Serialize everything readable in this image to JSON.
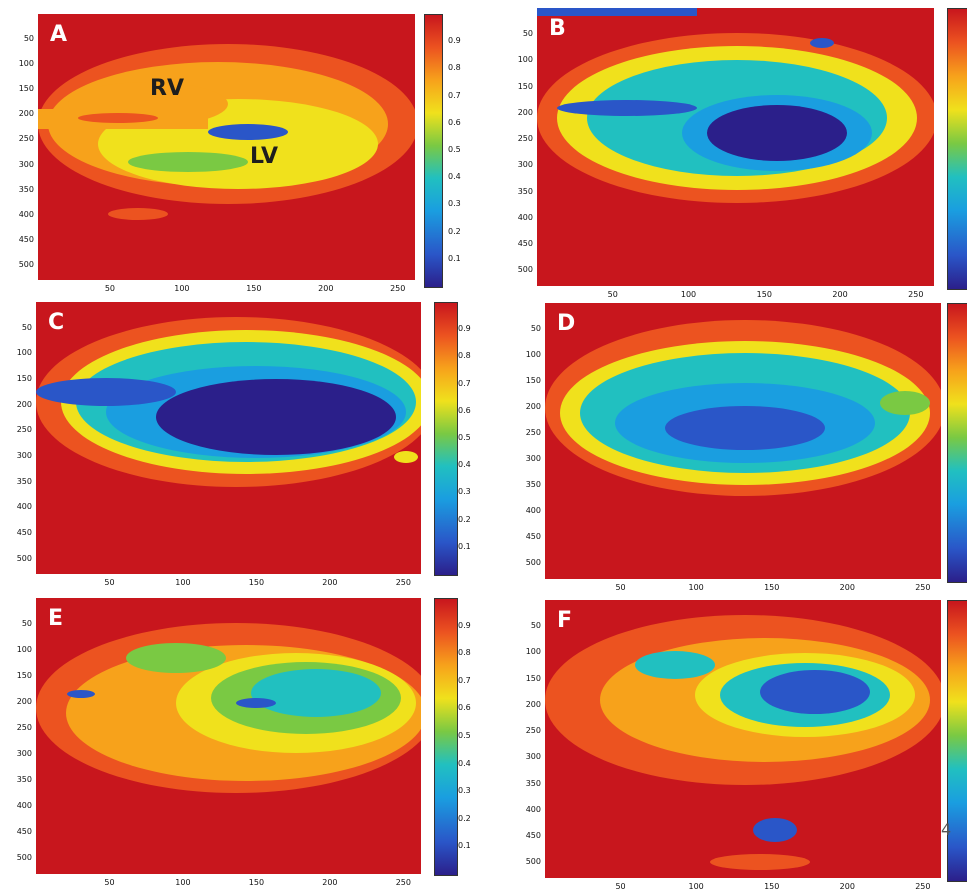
{
  "chart_data": [
    {
      "type": "heatmap",
      "panel": "A",
      "annotations": [
        "RV",
        "LV"
      ],
      "xticks": [
        "50",
        "100",
        "150",
        "200",
        "250"
      ],
      "yticks": [
        "50",
        "100",
        "150",
        "200",
        "250",
        "300",
        "350",
        "400",
        "450",
        "500"
      ],
      "colorbar_ticks": [
        "0.9",
        "0.8",
        "0.7",
        "0.6",
        "0.5",
        "0.4",
        "0.3",
        "0.2",
        "0.1"
      ],
      "colorscale": [
        "#2b1f8a",
        "#2a56c8",
        "#1a9ee0",
        "#21c0c0",
        "#7ac943",
        "#f0e11c",
        "#f7a21b",
        "#ec5320",
        "#c8161d"
      ]
    },
    {
      "type": "heatmap",
      "panel": "B",
      "annotations": [],
      "xticks": [
        "50",
        "100",
        "150",
        "200",
        "250"
      ],
      "yticks": [
        "50",
        "100",
        "150",
        "200",
        "250",
        "300",
        "350",
        "400",
        "450",
        "500"
      ],
      "colorbar_ticks": []
    },
    {
      "type": "heatmap",
      "panel": "C",
      "annotations": [],
      "xticks": [
        "50",
        "100",
        "150",
        "200",
        "250"
      ],
      "yticks": [
        "50",
        "100",
        "150",
        "200",
        "250",
        "300",
        "350",
        "400",
        "450",
        "500"
      ],
      "colorbar_ticks": [
        "0.9",
        "0.8",
        "0.7",
        "0.6",
        "0.5",
        "0.4",
        "0.3",
        "0.2",
        "0.1"
      ]
    },
    {
      "type": "heatmap",
      "panel": "D",
      "annotations": [],
      "xticks": [
        "50",
        "100",
        "150",
        "200",
        "250"
      ],
      "yticks": [
        "50",
        "100",
        "150",
        "200",
        "250",
        "300",
        "350",
        "400",
        "450",
        "500"
      ],
      "colorbar_ticks": []
    },
    {
      "type": "heatmap",
      "panel": "E",
      "annotations": [],
      "xticks": [
        "50",
        "100",
        "150",
        "200",
        "250"
      ],
      "yticks": [
        "50",
        "100",
        "150",
        "200",
        "250",
        "300",
        "350",
        "400",
        "450",
        "500"
      ],
      "colorbar_ticks": [
        "0.9",
        "0.8",
        "0.7",
        "0.6",
        "0.5",
        "0.4",
        "0.3",
        "0.2",
        "0.1"
      ]
    },
    {
      "type": "heatmap",
      "panel": "F",
      "annotations": [],
      "xticks": [
        "50",
        "100",
        "150",
        "200",
        "250"
      ],
      "yticks": [
        "50",
        "100",
        "150",
        "200",
        "250",
        "300",
        "350",
        "400",
        "450",
        "500"
      ],
      "colorbar_ticks": []
    }
  ],
  "stray_text": "4"
}
